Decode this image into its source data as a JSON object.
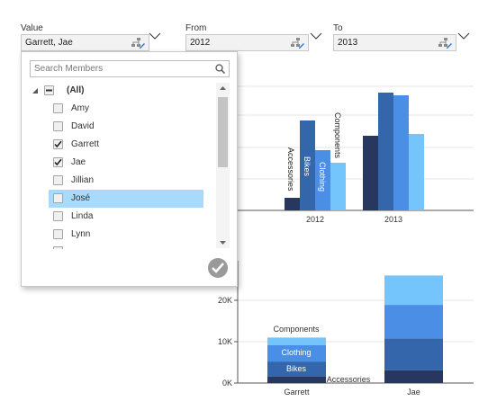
{
  "params": {
    "value": {
      "label": "Value",
      "text": "Garrett, Jae"
    },
    "from": {
      "label": "From",
      "text": "2012"
    },
    "to": {
      "label": "To",
      "text": "2013"
    }
  },
  "dropdown": {
    "search_placeholder": "Search Members",
    "all_label": "(All)",
    "members": [
      {
        "name": "Amy",
        "checked": false
      },
      {
        "name": "David",
        "checked": false
      },
      {
        "name": "Garrett",
        "checked": true
      },
      {
        "name": "Jae",
        "checked": true
      },
      {
        "name": "Jillian",
        "checked": false
      },
      {
        "name": "José",
        "checked": false,
        "highlighted": true
      },
      {
        "name": "Linda",
        "checked": false
      },
      {
        "name": "Lynn",
        "checked": false
      }
    ]
  },
  "colors": {
    "accessories": "#27375f",
    "bikes": "#3366aa",
    "clothing": "#4a8ee6",
    "components": "#74c5fb",
    "highlight": "#a8dbfb"
  },
  "chart_data": [
    {
      "type": "bar",
      "categories": [
        "2012",
        "2013"
      ],
      "series": [
        {
          "name": "Accessories",
          "values": [
            14,
            83
          ]
        },
        {
          "name": "Bikes",
          "values": [
            100,
            131
          ]
        },
        {
          "name": "Clothing",
          "values": [
            67,
            128
          ]
        },
        {
          "name": "Components",
          "values": [
            53,
            85
          ]
        }
      ],
      "bar_labels": [
        "Accessories",
        "Bikes",
        "Clothing",
        "Components"
      ]
    },
    {
      "type": "bar",
      "stacked": true,
      "categories": [
        "Garrett",
        "Jae"
      ],
      "series": [
        {
          "name": "Accessories",
          "values": [
            1600,
            3100
          ]
        },
        {
          "name": "Bikes",
          "values": [
            3600,
            7700
          ]
        },
        {
          "name": "Clothing",
          "values": [
            4000,
            8100
          ]
        },
        {
          "name": "Components",
          "values": [
            1800,
            7100
          ]
        }
      ],
      "yticks": [
        "0K",
        "10K",
        "20K"
      ],
      "ylim": [
        0,
        30000
      ],
      "segment_labels": [
        "Accessories",
        "Bikes",
        "Clothing",
        "Components"
      ]
    }
  ]
}
